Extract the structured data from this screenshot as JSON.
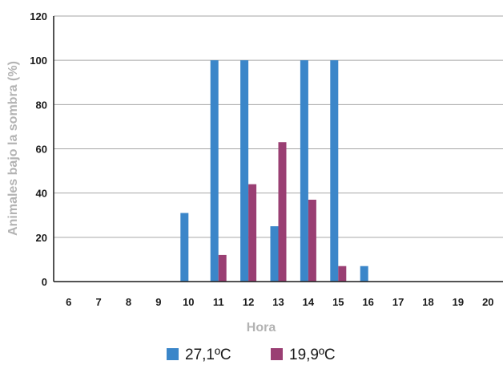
{
  "chart_data": {
    "type": "bar",
    "categories": [
      "6",
      "7",
      "8",
      "9",
      "10",
      "11",
      "12",
      "13",
      "14",
      "15",
      "16",
      "17",
      "18",
      "19",
      "20"
    ],
    "series": [
      {
        "name": "27,1ºC",
        "color": "#3b86c9",
        "values": [
          0,
          0,
          0,
          0,
          31,
          100,
          100,
          25,
          100,
          100,
          7,
          0,
          0,
          0,
          0
        ]
      },
      {
        "name": "19,9ºC",
        "color": "#9a3f73",
        "values": [
          0,
          0,
          0,
          0,
          0,
          12,
          44,
          63,
          37,
          7,
          0,
          0,
          0,
          0,
          0
        ]
      }
    ],
    "xlabel": "Hora",
    "ylabel": "Animales bajo la sombra (%)",
    "ylim": [
      0,
      120
    ],
    "yticks": [
      0,
      20,
      40,
      60,
      80,
      100,
      120
    ],
    "grid": true,
    "legend_position": "bottom"
  }
}
